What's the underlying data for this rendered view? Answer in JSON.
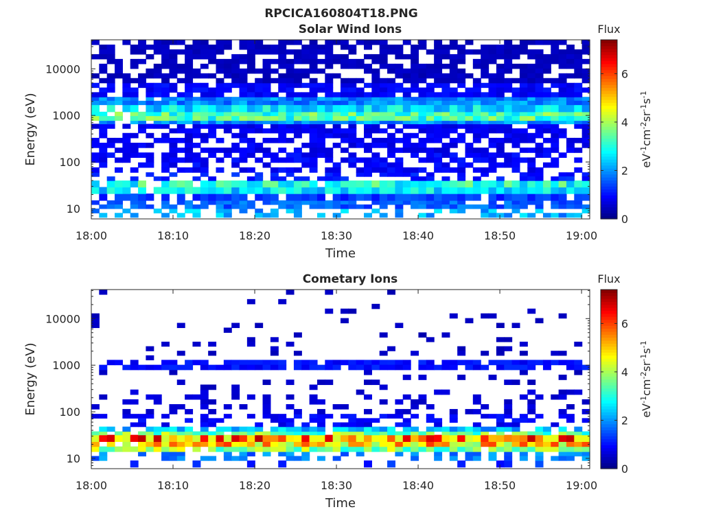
{
  "figure": {
    "title": "RPCICA160804T18.PNG"
  },
  "chart_data": [
    {
      "type": "heatmap",
      "title": "Solar Wind Ions",
      "xlabel": "Time",
      "ylabel": "Energy (eV)",
      "x_ticks": [
        "18:00",
        "18:10",
        "18:20",
        "18:30",
        "18:40",
        "18:50",
        "19:00"
      ],
      "y_ticks": [
        "10",
        "100",
        "1000",
        "10000"
      ],
      "y_scale": "log",
      "x_range": [
        "18:00",
        "19:01"
      ],
      "y_range": [
        6,
        42000
      ],
      "colorbar": {
        "title": "Flux",
        "label": "eV-1cm-2sr-1s-1",
        "ticks": [
          0,
          2,
          4,
          6
        ],
        "range": [
          0,
          7.4
        ],
        "colormap": "jet"
      },
      "bands": [
        {
          "energy_eV": [
            6.5,
            10
          ],
          "level": 2.2,
          "fill": 0.45
        },
        {
          "energy_eV": [
            10,
            15
          ],
          "level": 1.6,
          "fill": 0.75
        },
        {
          "energy_eV": [
            15,
            21
          ],
          "level": 1.3,
          "fill": 0.85
        },
        {
          "energy_eV": [
            21,
            29
          ],
          "level": 2.6,
          "fill": 1.0
        },
        {
          "energy_eV": [
            29,
            40
          ],
          "level": 3.0,
          "fill": 0.95
        },
        {
          "energy_eV": [
            40,
            60
          ],
          "level": 1.1,
          "fill": 0.45
        },
        {
          "energy_eV": [
            60,
            160
          ],
          "level": 0.9,
          "fill": 0.55
        },
        {
          "energy_eV": [
            160,
            420
          ],
          "level": 0.8,
          "fill": 0.6
        },
        {
          "energy_eV": [
            420,
            660
          ],
          "level": 0.8,
          "fill": 0.75
        },
        {
          "energy_eV": [
            660,
            780
          ],
          "level": 2.0,
          "fill": 1.0
        },
        {
          "energy_eV": [
            780,
            1200
          ],
          "level": 3.3,
          "fill": 1.0
        },
        {
          "energy_eV": [
            1200,
            1700
          ],
          "level": 2.6,
          "fill": 1.0
        },
        {
          "energy_eV": [
            1700,
            2500
          ],
          "level": 1.9,
          "fill": 1.0
        },
        {
          "energy_eV": [
            2500,
            5000
          ],
          "level": 0.9,
          "fill": 0.8
        },
        {
          "energy_eV": [
            5000,
            42000
          ],
          "level": 0.45,
          "fill": 0.7
        }
      ]
    },
    {
      "type": "heatmap",
      "title": "Cometary Ions",
      "xlabel": "Time",
      "ylabel": "Energy (eV)",
      "x_ticks": [
        "18:00",
        "18:10",
        "18:20",
        "18:30",
        "18:40",
        "18:50",
        "19:00"
      ],
      "y_ticks": [
        "10",
        "100",
        "1000",
        "10000"
      ],
      "y_scale": "log",
      "x_range": [
        "18:00",
        "19:01"
      ],
      "y_range": [
        6,
        42000
      ],
      "colorbar": {
        "title": "Flux",
        "label": "eV-1cm-2sr-1s-1",
        "ticks": [
          0,
          2,
          4,
          6
        ],
        "range": [
          0,
          7.4
        ],
        "colormap": "jet"
      },
      "bands": [
        {
          "energy_eV": [
            6.5,
            9
          ],
          "level": 1.2,
          "fill": 0.2
        },
        {
          "energy_eV": [
            9,
            14
          ],
          "level": 1.8,
          "fill": 0.45
        },
        {
          "energy_eV": [
            14,
            18
          ],
          "level": 3.8,
          "fill": 0.95
        },
        {
          "energy_eV": [
            18,
            23
          ],
          "level": 4.9,
          "fill": 1.0
        },
        {
          "energy_eV": [
            23,
            32
          ],
          "level": 5.6,
          "fill": 1.0
        },
        {
          "energy_eV": [
            32,
            38
          ],
          "level": 3.6,
          "fill": 0.95
        },
        {
          "energy_eV": [
            38,
            48
          ],
          "level": 2.3,
          "fill": 0.85
        },
        {
          "energy_eV": [
            48,
            90
          ],
          "level": 0.9,
          "fill": 0.45
        },
        {
          "energy_eV": [
            90,
            300
          ],
          "level": 0.6,
          "fill": 0.25
        },
        {
          "energy_eV": [
            300,
            800
          ],
          "level": 0.5,
          "fill": 0.12
        },
        {
          "energy_eV": [
            800,
            1300
          ],
          "level": 1.0,
          "fill": 0.85
        },
        {
          "energy_eV": [
            1300,
            4000
          ],
          "level": 0.5,
          "fill": 0.1
        },
        {
          "energy_eV": [
            4000,
            42000
          ],
          "level": 0.45,
          "fill": 0.05
        }
      ]
    }
  ]
}
